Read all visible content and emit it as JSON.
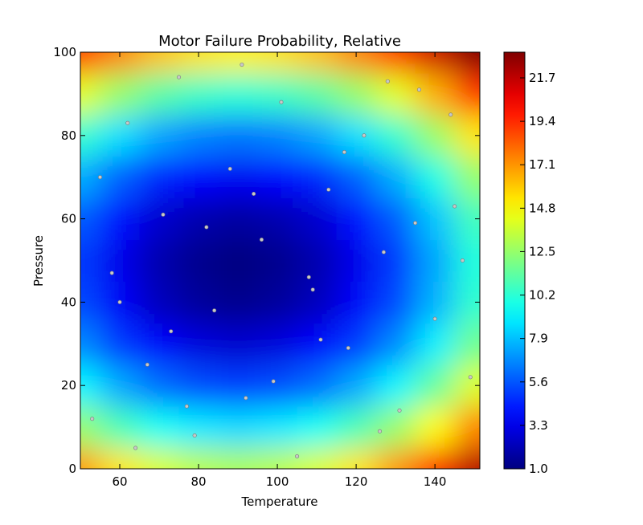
{
  "chart_data": {
    "type": "heatmap",
    "title": "Motor Failure Probability, Relative",
    "xlabel": "Temperature",
    "ylabel": "Pressure",
    "xlim": [
      50,
      151.4
    ],
    "ylim": [
      0,
      100
    ],
    "xticks": [
      60,
      80,
      100,
      120,
      140
    ],
    "yticks": [
      0,
      20,
      40,
      60,
      80,
      100
    ],
    "colormap": "jet",
    "clim": [
      1.0,
      23.06
    ],
    "cticks": [
      {
        "value": 1.0,
        "label": "1.0"
      },
      3.3,
      5.6,
      7.9,
      10.2,
      12.5,
      14.8,
      17.1,
      19.4,
      21.7
    ],
    "heatmap": {
      "x": [
        50,
        60,
        70,
        80,
        90,
        100,
        110,
        120,
        130,
        140,
        150
      ],
      "y": [
        0,
        10,
        20,
        30,
        40,
        50,
        60,
        70,
        80,
        90,
        100
      ],
      "z": [
        [
          17.0,
          15.3,
          14.0,
          13.3,
          13.0,
          13.3,
          14.0,
          15.3,
          17.0,
          19.3,
          22.0
        ],
        [
          12.5,
          10.8,
          9.5,
          8.8,
          8.5,
          8.8,
          9.5,
          10.8,
          12.5,
          14.8,
          17.5
        ],
        [
          9.1,
          7.4,
          6.1,
          5.4,
          5.1,
          5.4,
          6.1,
          7.4,
          9.1,
          11.4,
          14.1
        ],
        [
          6.7,
          5.0,
          3.7,
          3.0,
          2.7,
          3.0,
          3.7,
          5.0,
          6.7,
          9.0,
          11.7
        ],
        [
          5.3,
          3.6,
          2.3,
          1.6,
          1.3,
          1.6,
          2.3,
          3.6,
          5.3,
          7.6,
          10.3
        ],
        [
          5.0,
          3.3,
          2.0,
          1.3,
          1.0,
          1.3,
          2.0,
          3.3,
          5.0,
          7.3,
          10.0
        ],
        [
          5.7,
          4.0,
          2.7,
          2.0,
          1.7,
          2.0,
          2.7,
          4.0,
          5.7,
          8.0,
          10.7
        ],
        [
          7.5,
          5.8,
          4.5,
          3.8,
          3.5,
          3.8,
          4.5,
          5.8,
          7.5,
          9.8,
          12.5
        ],
        [
          10.3,
          8.6,
          7.3,
          6.6,
          6.3,
          6.6,
          7.3,
          8.6,
          10.3,
          12.6,
          15.3
        ],
        [
          14.2,
          12.5,
          11.2,
          10.5,
          10.2,
          10.5,
          11.2,
          12.5,
          14.2,
          16.5,
          19.2
        ],
        [
          19.1,
          17.4,
          16.1,
          15.4,
          15.1,
          15.4,
          16.1,
          17.4,
          19.1,
          21.4,
          23.0
        ]
      ]
    },
    "points": {
      "color": "#c8c8c8",
      "x": [
        53,
        58,
        62,
        67,
        71,
        75,
        79,
        84,
        88,
        92,
        96,
        101,
        105,
        109,
        113,
        118,
        122,
        127,
        131,
        136,
        140,
        145,
        149,
        55,
        64,
        73,
        82,
        91,
        99,
        108,
        117,
        126,
        135,
        144,
        60,
        77,
        94,
        111,
        128,
        147
      ],
      "y": [
        12,
        47,
        83,
        25,
        61,
        94,
        8,
        38,
        72,
        17,
        55,
        88,
        3,
        43,
        67,
        29,
        80,
        52,
        14,
        91,
        36,
        63,
        22,
        70,
        5,
        33,
        58,
        97,
        21,
        46,
        76,
        9,
        59,
        85,
        40,
        15,
        66,
        31,
        93,
        50
      ]
    }
  }
}
